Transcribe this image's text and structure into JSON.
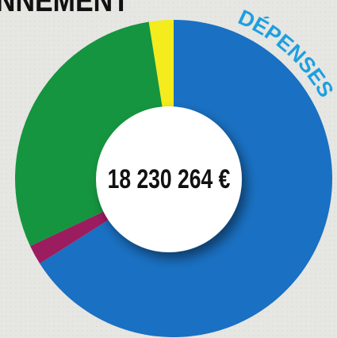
{
  "title": "NNEMENT",
  "chart_data": {
    "type": "pie",
    "subtitle": "DÉPENSES",
    "center_label": "18 230 264 €",
    "values": [
      66,
      2,
      29.5,
      2.5
    ],
    "colors": [
      "#1a70c2",
      "#9b1d5f",
      "#15953f",
      "#f4ec1c"
    ]
  }
}
